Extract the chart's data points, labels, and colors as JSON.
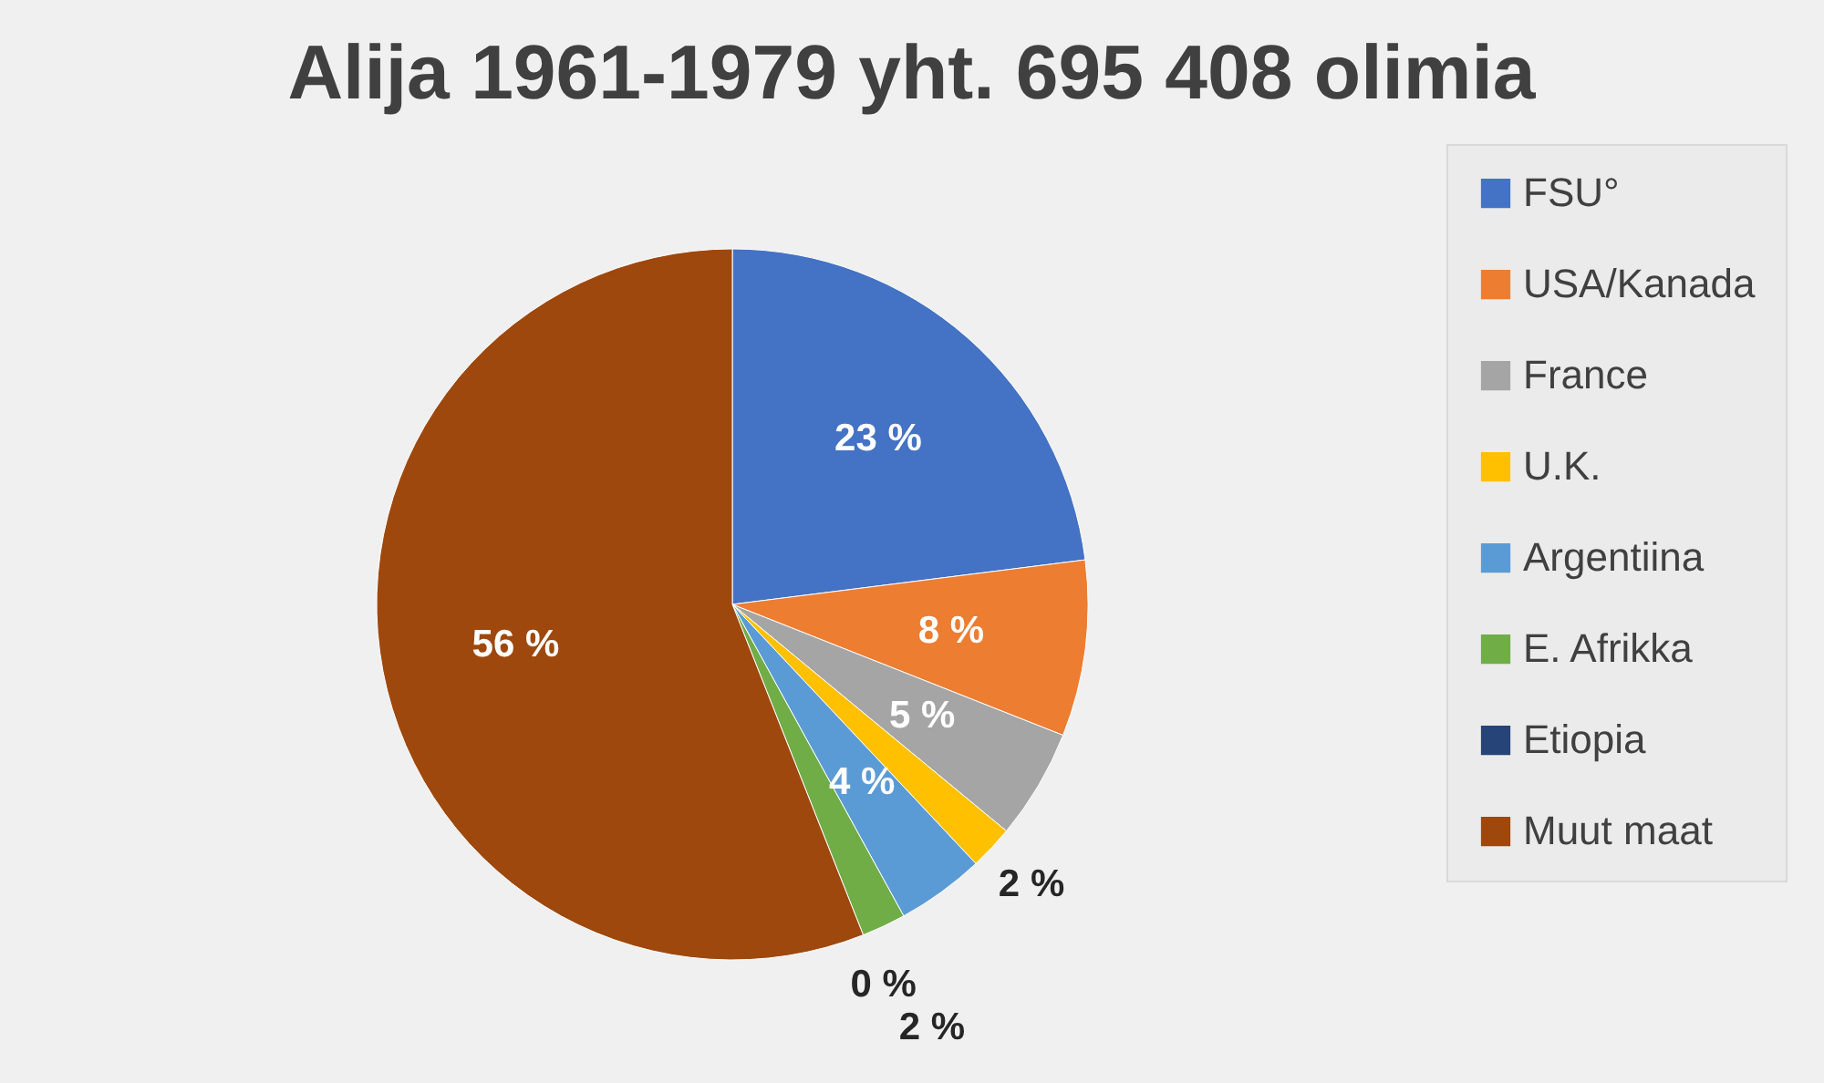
{
  "chart_data": {
    "type": "pie",
    "title": "Alija 1961-1979 yht. 695 408 olimia",
    "categories": [
      "FSU°",
      "USA/Kanada",
      "France",
      "U.K.",
      "Argentiina",
      "E. Afrikka",
      "Etiopia",
      "Muut maat"
    ],
    "values": [
      23,
      8,
      5,
      2,
      4,
      2,
      0,
      56
    ],
    "colors": [
      "#4472c4",
      "#ed7d31",
      "#a5a5a5",
      "#ffc000",
      "#5b9bd5",
      "#70ad47",
      "#264478",
      "#9e480e"
    ],
    "value_labels": [
      "23 %",
      "8 %",
      "5 %",
      "2 %",
      "4 %",
      "2 %",
      "0 %",
      "56 %"
    ],
    "legend": "right"
  }
}
